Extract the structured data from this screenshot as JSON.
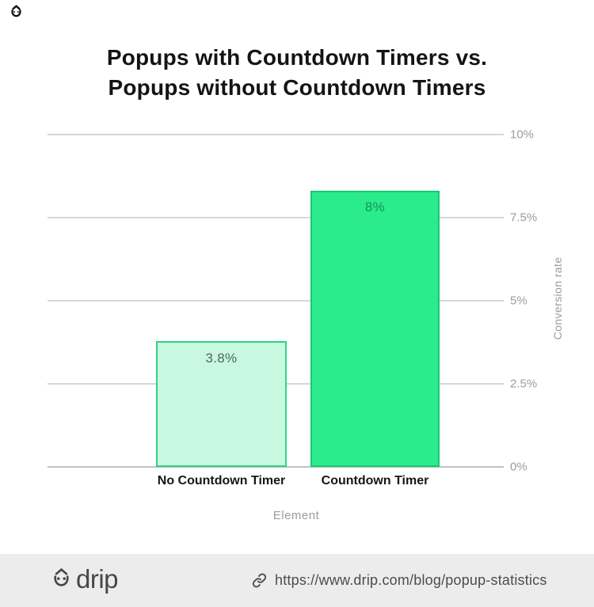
{
  "header": {
    "title_line1": "Popups with Countdown Timers vs.",
    "title_line2": "Popups without Countdown Timers"
  },
  "chart_data": {
    "type": "bar",
    "title": "Popups with Countdown Timers vs. Popups without Countdown Timers",
    "categories": [
      "No Countdown Timer",
      "Countdown Timer"
    ],
    "values": [
      3.8,
      8
    ],
    "value_labels": [
      "3.8%",
      "8%"
    ],
    "xlabel": "Element",
    "ylabel": "Conversion rate",
    "ylim": [
      0,
      10
    ],
    "ytick_values": [
      0,
      2.5,
      5,
      7.5,
      10
    ],
    "ytick_labels": [
      "0%",
      "2.5%",
      "5%",
      "7.5%",
      "10%"
    ],
    "grid": true,
    "legend": false,
    "bar_styles": [
      {
        "fill": "#c9f8e0",
        "border": "#2fd38a",
        "value_color": "#50685c"
      },
      {
        "fill": "#2bec8c",
        "border": "#16c873",
        "value_color": "#13935a"
      }
    ]
  },
  "colors": {
    "grid": "#d6d6d6",
    "baseline": "#c2c2c2",
    "axis_text": "#9b9ca1",
    "title_text": "#141414",
    "footer_bg": "#ececec",
    "footer_text": "#4c4c4c"
  },
  "footer": {
    "logo_text": "drip",
    "link_icon": "link-icon",
    "url": "https://www.drip.com/blog/popup-statistics"
  }
}
